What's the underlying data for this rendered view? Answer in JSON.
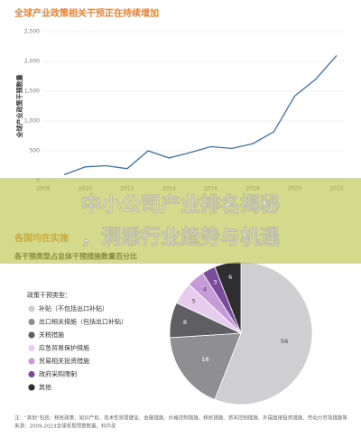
{
  "chart_data": [
    {
      "type": "line",
      "title": "全球产业政策相关干预正在持续增加",
      "ylabel": "全球产业政策干预数量",
      "x": [
        2009,
        2010,
        2011,
        2012,
        2013,
        2014,
        2015,
        2016,
        2017,
        2018,
        2019,
        2020,
        2021,
        2022
      ],
      "series": [
        {
          "name": "全球产业政策干预数量",
          "color": "#3d6fa8",
          "values": [
            100,
            230,
            250,
            200,
            500,
            380,
            470,
            570,
            540,
            620,
            820,
            1420,
            1700,
            2100
          ]
        }
      ],
      "xlim": [
        2008,
        2022
      ],
      "xticks": [
        2008,
        2010,
        2012,
        2014,
        2016,
        2018,
        2020,
        2022
      ],
      "ylim": [
        0,
        2500
      ],
      "yticks": [
        0,
        500,
        {
          "value": 1000,
          "label": "1,000"
        },
        {
          "value": 1500,
          "label": "1,500"
        },
        {
          "value": 2000,
          "label": "2,000"
        },
        {
          "value": 2500,
          "label": "2,500"
        }
      ],
      "grid": true
    },
    {
      "type": "pie",
      "title": "各国均在实施",
      "subtitle": "各干预类型占总体干预措施数量百分比",
      "legend_title": "政策干预类型：",
      "categories": [
        "补贴（不包括出口补贴）",
        "出口相关措施（包括出口补贴）",
        "关税措施",
        "应急贸易保护措施",
        "贸易相关投资措施",
        "政府采购限制",
        "其他"
      ],
      "values": [
        56,
        18,
        8,
        5,
        4,
        3,
        6
      ],
      "colors": [
        "#cfcfd1",
        "#8f8f92",
        "#5f5f63",
        "#e6cdee",
        "#c59bd8",
        "#7b4c9c",
        "#2e2e30"
      ]
    }
  ],
  "banner": {
    "line1": "中小公司产业排名揭秘",
    "line2": "，洞悉行业趋势与机遇"
  },
  "notes": [
    "注：“其他”包括：移民政策、知识产权、技术性贸易壁垒、金融措施、价格控制措施、移民措施、资本控制措施、外国直接投资措施、劳动力市场措施等",
    "来源：2009-2023全球贸易预警数据，科尔尼"
  ]
}
